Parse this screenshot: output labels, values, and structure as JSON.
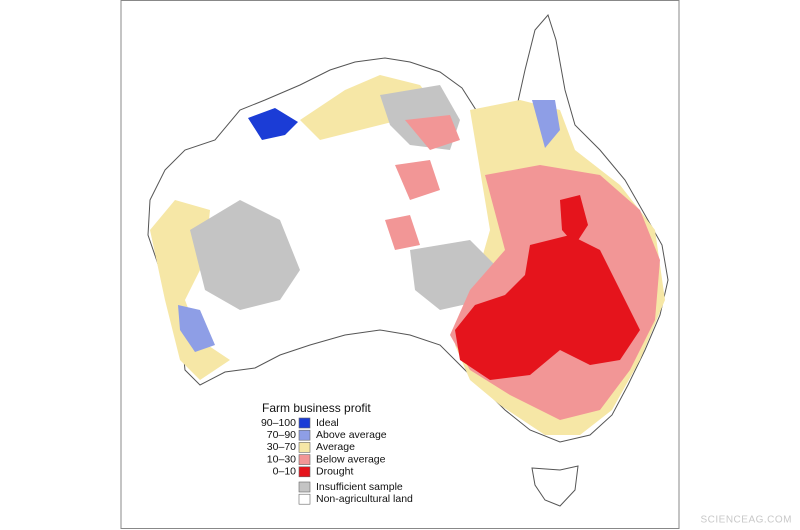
{
  "legend": {
    "title": "Farm business profit",
    "items": [
      {
        "range": "90–100",
        "label": "Ideal"
      },
      {
        "range": "70–90",
        "label": "Above average"
      },
      {
        "range": "30–70",
        "label": "Average"
      },
      {
        "range": "10–30",
        "label": "Below average"
      },
      {
        "range": "0–10",
        "label": "Drought"
      },
      {
        "label": "Insufficient sample"
      },
      {
        "label": "Non-agricultural land"
      }
    ]
  },
  "watermark": "SCIENCEAG.COM"
}
